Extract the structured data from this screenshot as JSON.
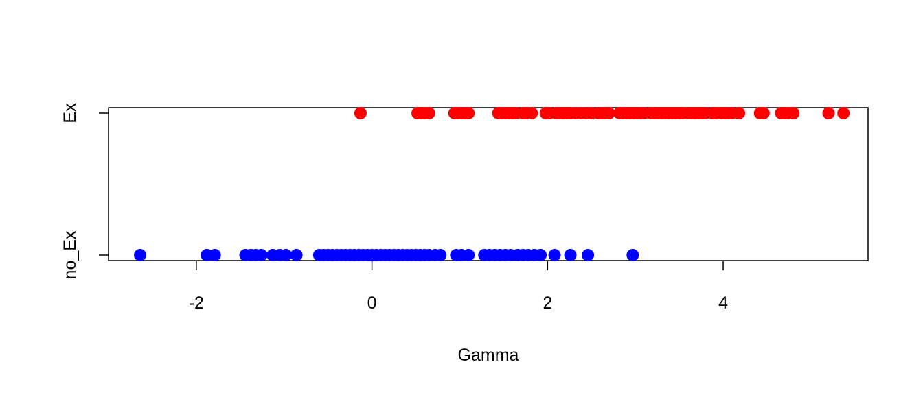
{
  "chart_data": {
    "type": "scatter",
    "title": "",
    "xlabel": "Gamma",
    "ylabel": "",
    "xlim": [
      -3.0,
      5.65
    ],
    "x_ticks": [
      -2,
      0,
      2,
      4
    ],
    "x_tick_labels": [
      "-2",
      "0",
      "2",
      "4"
    ],
    "y_categories": [
      "no_Ex",
      "Ex"
    ],
    "grid": false,
    "legend": "none",
    "series": [
      {
        "category": "Ex",
        "color": "#ff0000",
        "x": [
          -0.13,
          0.52,
          0.56,
          0.6,
          0.65,
          0.94,
          0.98,
          1.02,
          1.06,
          1.1,
          1.44,
          1.48,
          1.52,
          1.56,
          1.6,
          1.64,
          1.72,
          1.76,
          1.82,
          1.98,
          2.02,
          2.1,
          2.14,
          2.18,
          2.22,
          2.26,
          2.32,
          2.38,
          2.44,
          2.5,
          2.58,
          2.62,
          2.66,
          2.7,
          2.82,
          2.86,
          2.9,
          2.94,
          2.98,
          3.02,
          3.06,
          3.1,
          3.18,
          3.22,
          3.26,
          3.3,
          3.34,
          3.38,
          3.42,
          3.46,
          3.5,
          3.54,
          3.6,
          3.64,
          3.68,
          3.72,
          3.76,
          3.8,
          3.88,
          3.92,
          3.98,
          4.02,
          4.06,
          4.1,
          4.18,
          4.42,
          4.46,
          4.66,
          4.7,
          4.74,
          4.8,
          5.2,
          5.37
        ]
      },
      {
        "category": "no_Ex",
        "color": "#0000ff",
        "x": [
          -2.64,
          -1.88,
          -1.79,
          -1.44,
          -1.38,
          -1.32,
          -1.26,
          -1.13,
          -1.05,
          -0.98,
          -0.86,
          -0.6,
          -0.55,
          -0.5,
          -0.45,
          -0.4,
          -0.35,
          -0.3,
          -0.25,
          -0.2,
          -0.15,
          -0.1,
          -0.05,
          0.0,
          0.05,
          0.1,
          0.15,
          0.2,
          0.25,
          0.3,
          0.35,
          0.4,
          0.45,
          0.5,
          0.55,
          0.6,
          0.65,
          0.72,
          0.78,
          0.96,
          1.02,
          1.1,
          1.28,
          1.34,
          1.4,
          1.46,
          1.52,
          1.58,
          1.66,
          1.72,
          1.78,
          1.85,
          1.92,
          2.08,
          2.26,
          2.46,
          2.97
        ]
      }
    ]
  }
}
